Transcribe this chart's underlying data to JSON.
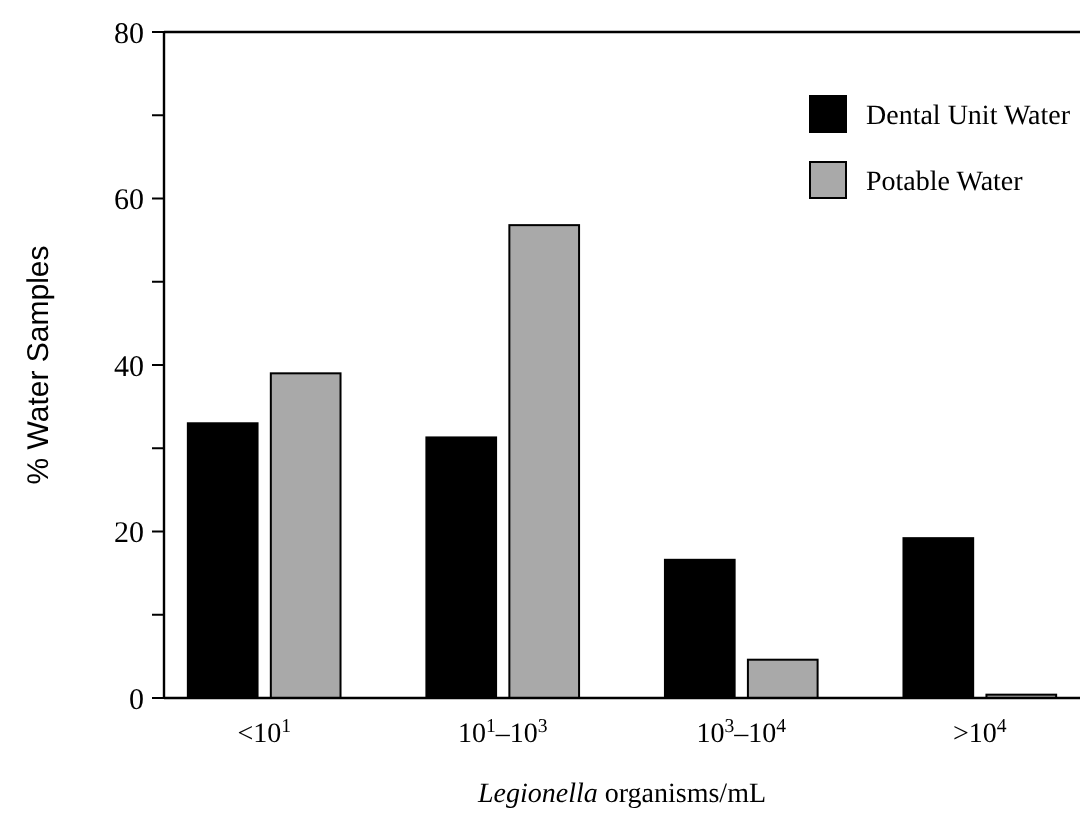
{
  "chart_data": {
    "type": "bar",
    "xlabel": "Legionella organisms/mL",
    "ylabel": "% Water Samples",
    "categories": [
      "<10$^{1}$",
      "10$^{1}$–10$^{3}$",
      "10$^{3}$–10$^{4}$",
      ">10$^{4}$"
    ],
    "series": [
      {
        "name": "Dental Unit Water",
        "color": "#000000",
        "values": [
          33.0,
          31.3,
          16.6,
          19.2
        ]
      },
      {
        "name": "Potable Water",
        "color": "#a9a9a9",
        "values": [
          39.0,
          56.8,
          4.6,
          0.4
        ]
      }
    ],
    "ylim": [
      0,
      80
    ],
    "yticks": [
      0,
      {
        "value": 10,
        "label": null
      },
      20,
      {
        "value": 30,
        "label": null
      },
      40,
      {
        "value": 50,
        "label": null
      },
      60,
      {
        "value": 70,
        "label": null
      },
      80
    ],
    "legend": "top right",
    "grid": false
  }
}
